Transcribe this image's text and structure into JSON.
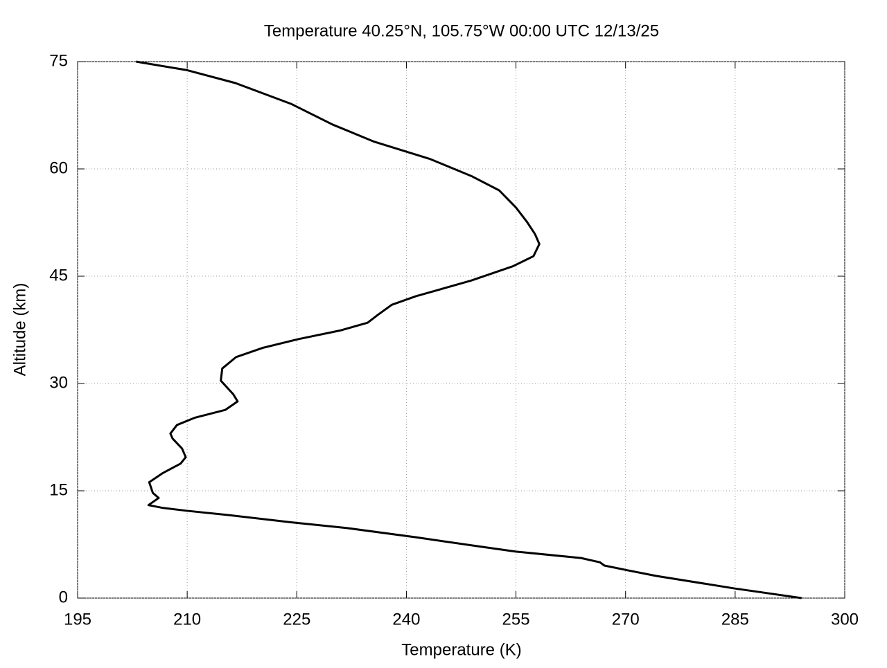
{
  "chart_data": {
    "type": "line",
    "title": "Temperature 40.25°N, 105.75°W 00:00 UTC 12/13/25",
    "x_label": "Temperature (K)",
    "y_label": "Altitude (km)",
    "color": "#000000",
    "grid": true,
    "xlim": [
      195,
      300
    ],
    "xticks": [
      195,
      210,
      225,
      240,
      255,
      270,
      285,
      300
    ],
    "ylim": [
      0,
      75
    ],
    "yticks": [
      0,
      15,
      30,
      45,
      60,
      75
    ],
    "x": [
      294.1,
      284.9,
      274.2,
      270.2,
      267.1,
      266.5,
      263.9,
      255.0,
      250.8,
      241.3,
      231.8,
      224.2,
      215.7,
      210.0,
      206.7,
      204.7,
      206.1,
      205.3,
      204.8,
      206.7,
      209.1,
      209.8,
      209.3,
      208.0,
      207.7,
      208.6,
      211.0,
      215.2,
      216.9,
      216.3,
      214.6,
      214.8,
      216.7,
      220.4,
      225.2,
      230.9,
      234.7,
      236.1,
      238.0,
      241.3,
      248.9,
      254.6,
      257.4,
      258.2,
      257.6,
      256.5,
      255.0,
      252.7,
      248.9,
      243.2,
      235.6,
      229.9,
      224.2,
      216.6,
      210.0,
      203.0
    ],
    "values": [
      0,
      1.35,
      3.1,
      3.9,
      4.55,
      5.0,
      5.6,
      6.5,
      7.1,
      8.5,
      9.8,
      10.6,
      11.6,
      12.2,
      12.6,
      13.0,
      14.0,
      14.7,
      16.2,
      17.5,
      18.8,
      19.7,
      20.9,
      22.3,
      23.0,
      24.2,
      25.2,
      26.3,
      27.5,
      28.5,
      30.4,
      32.1,
      33.7,
      35.0,
      36.2,
      37.4,
      38.5,
      39.6,
      41.0,
      42.2,
      44.4,
      46.4,
      47.8,
      49.5,
      50.9,
      52.6,
      54.6,
      57.0,
      59.0,
      61.4,
      63.8,
      66.2,
      69.1,
      72.0,
      73.8,
      75
    ]
  }
}
